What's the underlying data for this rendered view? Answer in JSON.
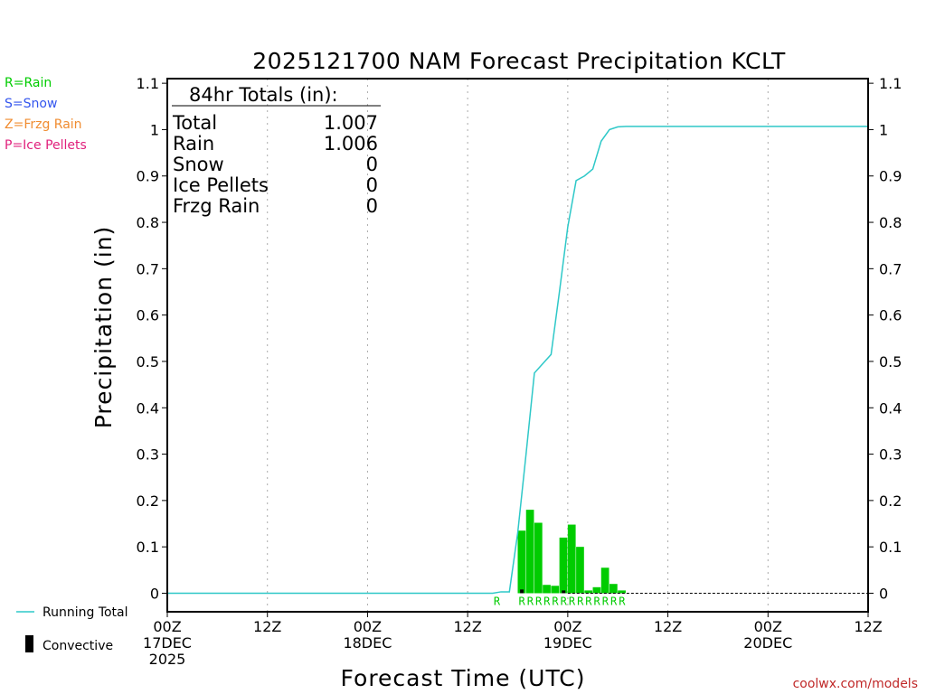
{
  "chart_data": {
    "type": "bar",
    "title": "2025121700 NAM Forecast Precipitation KCLT",
    "xlabel": "Forecast Time (UTC)",
    "ylabel": "Precipitation (in)",
    "ylim": [
      -0.04,
      1.11
    ],
    "xlim_hours": [
      0,
      84
    ],
    "y_ticks": [
      "0",
      "0.1",
      "0.2",
      "0.3",
      "0.4",
      "0.5",
      "0.6",
      "0.7",
      "0.8",
      "0.9",
      "1",
      "1.1"
    ],
    "y_tick_values": [
      0,
      0.1,
      0.2,
      0.3,
      0.4,
      0.5,
      0.6,
      0.7,
      0.8,
      0.9,
      1.0,
      1.1
    ],
    "x_ticks": [
      {
        "hour": 0,
        "line1": "00Z",
        "line2": "17DEC",
        "line3": "2025"
      },
      {
        "hour": 12,
        "line1": "12Z",
        "line2": "",
        "line3": ""
      },
      {
        "hour": 24,
        "line1": "00Z",
        "line2": "18DEC",
        "line3": ""
      },
      {
        "hour": 36,
        "line1": "12Z",
        "line2": "",
        "line3": ""
      },
      {
        "hour": 48,
        "line1": "00Z",
        "line2": "19DEC",
        "line3": ""
      },
      {
        "hour": 60,
        "line1": "12Z",
        "line2": "",
        "line3": ""
      },
      {
        "hour": 72,
        "line1": "00Z",
        "line2": "20DEC",
        "line3": ""
      },
      {
        "hour": 84,
        "line1": "12Z",
        "line2": "",
        "line3": ""
      }
    ],
    "bar_width_hours": 1,
    "hourly_precip": [
      {
        "hour": 42,
        "value": 0.135
      },
      {
        "hour": 43,
        "value": 0.18
      },
      {
        "hour": 44,
        "value": 0.152
      },
      {
        "hour": 45,
        "value": 0.018
      },
      {
        "hour": 46,
        "value": 0.016
      },
      {
        "hour": 47,
        "value": 0.12
      },
      {
        "hour": 48,
        "value": 0.148
      },
      {
        "hour": 49,
        "value": 0.1
      },
      {
        "hour": 50,
        "value": 0.006
      },
      {
        "hour": 51,
        "value": 0.013
      },
      {
        "hour": 52,
        "value": 0.055
      },
      {
        "hour": 53,
        "value": 0.02
      },
      {
        "hour": 54,
        "value": 0.006
      }
    ],
    "convective": [
      {
        "hour": 42.5,
        "value": 0.008
      },
      {
        "hour": 47.5,
        "value": 0.006
      }
    ],
    "running_total": {
      "x": [
        0,
        39,
        40,
        41,
        42,
        43,
        44,
        45,
        46,
        47,
        48,
        49,
        50,
        51,
        52,
        53,
        54,
        55,
        84
      ],
      "y": [
        0,
        0,
        0.003,
        0.003,
        0.13,
        0.3,
        0.475,
        0.495,
        0.515,
        0.65,
        0.79,
        0.89,
        0.9,
        0.915,
        0.975,
        1.0,
        1.006,
        1.007,
        1.007
      ]
    },
    "precip_type_markers": [
      {
        "hour": 39.5,
        "label": "R"
      },
      {
        "hour": 42.5,
        "label": "R"
      },
      {
        "hour": 43.5,
        "label": "R"
      },
      {
        "hour": 44.5,
        "label": "R"
      },
      {
        "hour": 45.5,
        "label": "R"
      },
      {
        "hour": 46.5,
        "label": "R"
      },
      {
        "hour": 47.5,
        "label": "R"
      },
      {
        "hour": 48.5,
        "label": "R"
      },
      {
        "hour": 49.5,
        "label": "R"
      },
      {
        "hour": 50.5,
        "label": "R"
      },
      {
        "hour": 51.5,
        "label": "R"
      },
      {
        "hour": 52.5,
        "label": "R"
      },
      {
        "hour": 53.5,
        "label": "R"
      },
      {
        "hour": 54.5,
        "label": "R"
      }
    ],
    "totals_box": {
      "header": "84hr Totals (in):",
      "rows": [
        {
          "label": "Total",
          "value": "1.007"
        },
        {
          "label": "Rain",
          "value": "1.006"
        },
        {
          "label": "Snow",
          "value": "0"
        },
        {
          "label": "Ice Pellets",
          "value": "0"
        },
        {
          "label": "Frzg Rain",
          "value": "0"
        }
      ]
    },
    "type_legend": [
      {
        "text": "R=Rain",
        "color": "#00cc00"
      },
      {
        "text": "S=Snow",
        "color": "#3355ee"
      },
      {
        "text": "Z=Frzg Rain",
        "color": "#f08c30"
      },
      {
        "text": "P=Ice Pellets",
        "color": "#e0207c"
      }
    ],
    "series_legend": {
      "running_total": "Running Total",
      "convective": "Convective"
    },
    "colors": {
      "bar": "#00cc00",
      "line": "#2ec8c8",
      "convective": "#000000",
      "grid": "#aaaaaa",
      "credit": "#c02828"
    },
    "credit": "coolwx.com/models"
  }
}
